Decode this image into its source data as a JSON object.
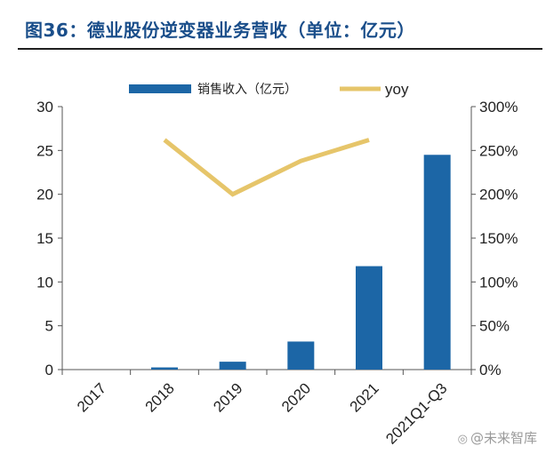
{
  "header": {
    "title": "图36：德业股份逆变器业务营收（单位：亿元）"
  },
  "watermark": {
    "icon": "weibo-icon",
    "text": "@未来智库"
  },
  "chart_data": {
    "type": "bar+line",
    "categories": [
      "2017",
      "2018",
      "2019",
      "2020",
      "2021",
      "2021Q1-Q3"
    ],
    "series": [
      {
        "name": "销售收入（亿元）",
        "type": "bar",
        "axis": "left",
        "color": "#1c66a6",
        "values": [
          0.0,
          0.25,
          0.9,
          3.2,
          11.8,
          24.5
        ]
      },
      {
        "name": "yoy",
        "type": "line",
        "axis": "right",
        "color": "#e6c56a",
        "values": [
          null,
          262,
          200,
          238,
          262,
          null
        ]
      }
    ],
    "y_left": {
      "min": 0,
      "max": 30,
      "ticks": [
        0,
        5,
        10,
        15,
        20,
        25,
        30
      ]
    },
    "y_right": {
      "min": 0,
      "max": 300,
      "ticks": [
        "0%",
        "50%",
        "100%",
        "150%",
        "200%",
        "250%",
        "300%"
      ]
    },
    "legend_position": "top",
    "grid": false
  }
}
